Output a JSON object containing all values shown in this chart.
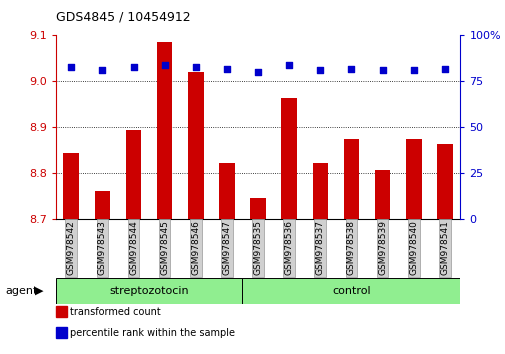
{
  "title": "GDS4845 / 10454912",
  "samples": [
    "GSM978542",
    "GSM978543",
    "GSM978544",
    "GSM978545",
    "GSM978546",
    "GSM978547",
    "GSM978535",
    "GSM978536",
    "GSM978537",
    "GSM978538",
    "GSM978539",
    "GSM978540",
    "GSM978541"
  ],
  "bar_values": [
    8.845,
    8.762,
    8.895,
    9.085,
    9.02,
    8.822,
    8.747,
    8.965,
    8.822,
    8.875,
    8.808,
    8.875,
    8.865
  ],
  "percentile_values": [
    83,
    81,
    83,
    84,
    83,
    82,
    80,
    84,
    81,
    82,
    81,
    81,
    82
  ],
  "group_labels": [
    "streptozotocin",
    "control"
  ],
  "group_split": 6,
  "bar_color": "#CC0000",
  "dot_color": "#0000CC",
  "ylim_left": [
    8.7,
    9.1
  ],
  "ylim_right": [
    0,
    100
  ],
  "yticks_left": [
    8.7,
    8.8,
    8.9,
    9.0,
    9.1
  ],
  "yticks_right": [
    0,
    25,
    50,
    75,
    100
  ],
  "background_color": "#ffffff",
  "tick_label_color_left": "#CC0000",
  "tick_label_color_right": "#0000CC",
  "legend_items": [
    "transformed count",
    "percentile rank within the sample"
  ],
  "agent_label": "agent",
  "group_bg_color": "#90EE90",
  "xtick_bg_color": "#D0D0D0",
  "xtick_edge_color": "#999999"
}
